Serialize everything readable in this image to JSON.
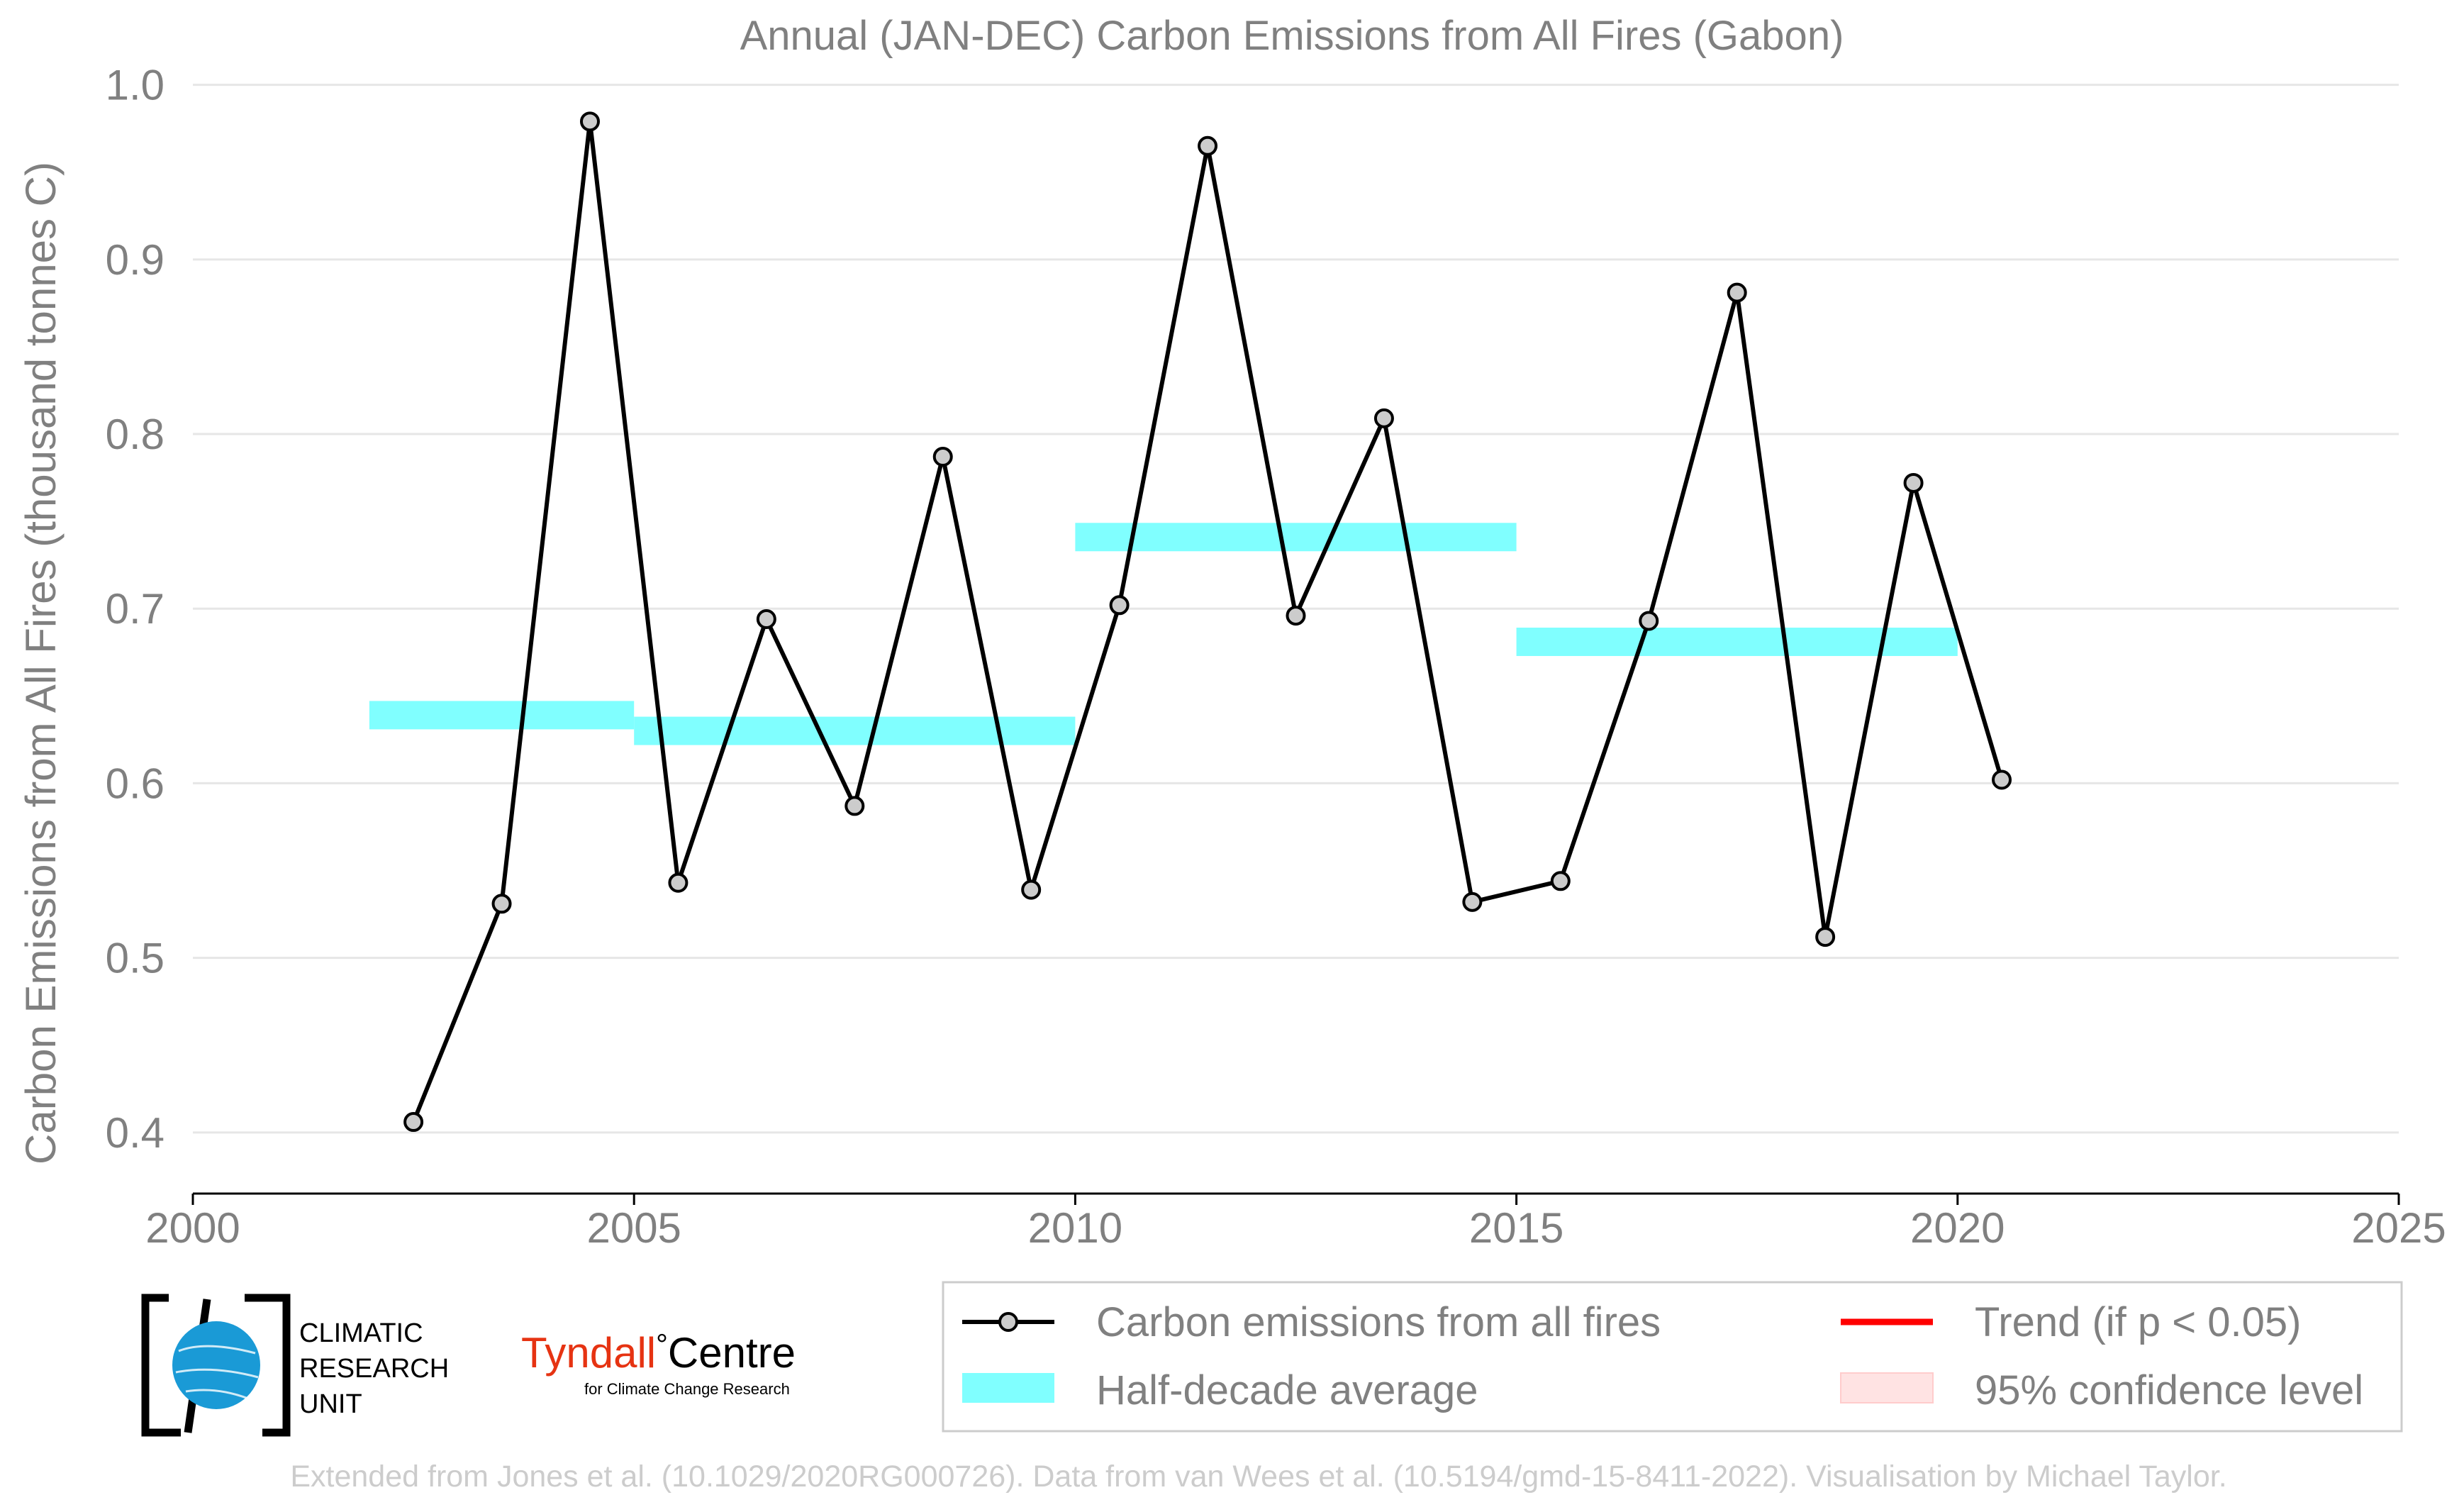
{
  "chart_data": {
    "type": "line",
    "title": "Annual (JAN-DEC) Carbon Emissions from All Fires (Gabon)",
    "xlabel": "",
    "ylabel": "Carbon Emissions from All Fires (thousand tonnes C)",
    "xlim": [
      2000,
      2025
    ],
    "ylim": [
      0.365,
      1.01
    ],
    "x_ticks": [
      2000,
      2005,
      2010,
      2015,
      2020,
      2025
    ],
    "y_ticks": [
      0.4,
      0.5,
      0.6,
      0.7,
      0.8,
      0.9,
      1.0
    ],
    "y_tick_labels": [
      "0.4",
      "0.5",
      "0.6",
      "0.7",
      "0.8",
      "0.9",
      "1.0"
    ],
    "grid": "horizontal",
    "legend_position": "bottom-right",
    "series": [
      {
        "name": "Carbon emissions from all fires",
        "color": "#000000",
        "marker_fill": "#cccccc",
        "x": [
          2002.5,
          2003.5,
          2004.5,
          2005.5,
          2006.5,
          2007.5,
          2008.5,
          2009.5,
          2010.5,
          2011.5,
          2012.5,
          2013.5,
          2014.5,
          2015.5,
          2016.5,
          2017.5,
          2018.5,
          2019.5,
          2020.5
        ],
        "values": [
          0.406,
          0.531,
          0.979,
          0.543,
          0.694,
          0.587,
          0.787,
          0.539,
          0.702,
          0.965,
          0.696,
          0.809,
          0.532,
          0.544,
          0.693,
          0.881,
          0.512,
          0.772,
          0.602
        ]
      }
    ],
    "half_decade_averages": {
      "name": "Half-decade average",
      "color": "#80ffff",
      "segments": [
        {
          "x_start": 2002,
          "x_end": 2005,
          "value": 0.639
        },
        {
          "x_start": 2005,
          "x_end": 2010,
          "value": 0.63
        },
        {
          "x_start": 2010,
          "x_end": 2015,
          "value": 0.741
        },
        {
          "x_start": 2015,
          "x_end": 2020,
          "value": 0.681
        }
      ]
    },
    "legend": [
      {
        "label": "Carbon emissions from all fires",
        "kind": "line-marker",
        "color": "#000000"
      },
      {
        "label": "Trend (if p < 0.05)",
        "kind": "line",
        "color": "#ff0000"
      },
      {
        "label": "Half-decade average",
        "kind": "patch",
        "color": "#80ffff"
      },
      {
        "label": "95% confidence level",
        "kind": "patch",
        "color": "#ffe3e3"
      }
    ]
  },
  "logos": {
    "cru_line1": "CLIMATIC",
    "cru_line2": "RESEARCH",
    "cru_line3": "UNIT",
    "tyndall_name": "Tyndall",
    "tyndall_degree": "°",
    "tyndall_centre": "Centre",
    "tyndall_sub": "for Climate Change Research"
  },
  "footer": {
    "credit": "Extended from Jones et al. (10.1029/2020RG000726). Data from van Wees et al. (10.5194/gmd-15-8411-2022). Visualisation by Michael Taylor."
  },
  "colors": {
    "text_gray": "#808080",
    "grid": "#e6e6e6",
    "footer_gray": "#cccccc",
    "tyndall_red": "#e63312",
    "cru_blue": "#1a9ad6"
  }
}
